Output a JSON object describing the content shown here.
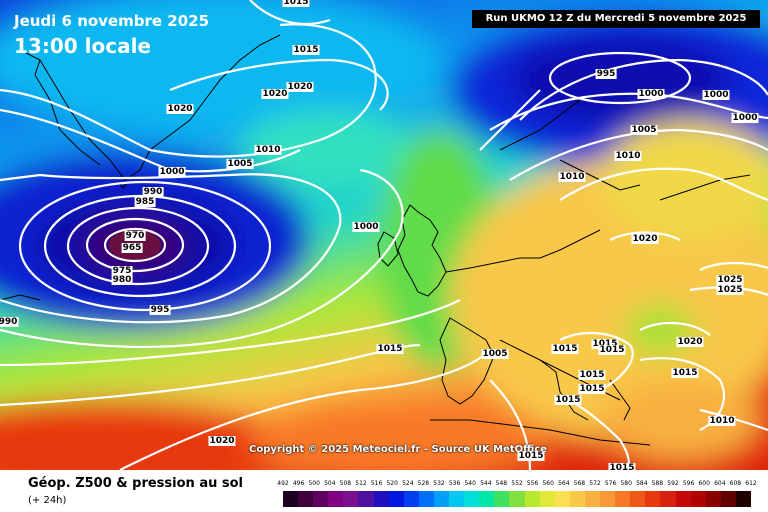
{
  "header": {
    "date": "Jeudi 6 novembre 2025",
    "time": "13:00 locale",
    "run": "Run UKMO 12 Z du Mercredi 5 novembre 2025"
  },
  "copyright": "Copyright © 2025 Meteociel.fr - Source UK MetOffice",
  "footer": {
    "title": "Géop. Z500 & pression au sol",
    "subtitle": "(+ 24h)"
  },
  "colors": {
    "low_center": "#6a1040",
    "deep_blue": "#1820c0",
    "ocean_green": "#58d858",
    "yellow": "#f6d24a",
    "red": "#e02810",
    "isobar": "#ffffff",
    "coast": "#000000"
  },
  "legend": {
    "labels": [
      "492",
      "496",
      "500",
      "504",
      "508",
      "512",
      "516",
      "520",
      "524",
      "528",
      "532",
      "536",
      "540",
      "544",
      "548",
      "552",
      "556",
      "560",
      "564",
      "568",
      "572",
      "576",
      "580",
      "584",
      "588",
      "592",
      "596",
      "600",
      "604",
      "608",
      "612"
    ],
    "colors": [
      "#200020",
      "#400040",
      "#600060",
      "#800080",
      "#7a1090",
      "#5010a0",
      "#2010c0",
      "#0018e0",
      "#0040f0",
      "#0070f8",
      "#00a0f8",
      "#00c8f0",
      "#00e0d8",
      "#00e8a8",
      "#40e060",
      "#80e040",
      "#b8e830",
      "#e0e838",
      "#f8e050",
      "#f8c848",
      "#f8b040",
      "#f89838",
      "#f87828",
      "#f05818",
      "#e83810",
      "#d82010",
      "#c80808",
      "#b00000",
      "#880000",
      "#600000",
      "#200000"
    ]
  },
  "isobar_labels": [
    {
      "text": "1015"
    },
    {
      "text": "1015"
    },
    {
      "text": "1020"
    },
    {
      "text": "1020"
    },
    {
      "text": "1020"
    },
    {
      "text": "1010"
    },
    {
      "text": "1005"
    },
    {
      "text": "1000"
    },
    {
      "text": "990"
    },
    {
      "text": "985"
    },
    {
      "text": "970"
    },
    {
      "text": "965"
    },
    {
      "text": "975"
    },
    {
      "text": "980"
    },
    {
      "text": "995"
    },
    {
      "text": "1000"
    },
    {
      "text": "990"
    },
    {
      "text": "995"
    },
    {
      "text": "1000"
    },
    {
      "text": "1000"
    },
    {
      "text": "1000"
    },
    {
      "text": "1005"
    },
    {
      "text": "1010"
    },
    {
      "text": "1010"
    },
    {
      "text": "1020"
    },
    {
      "text": "1025"
    },
    {
      "text": "1025"
    },
    {
      "text": "1020"
    },
    {
      "text": "1015"
    },
    {
      "text": "1015"
    },
    {
      "text": "1015"
    },
    {
      "text": "1015"
    },
    {
      "text": "1015"
    },
    {
      "text": "1015"
    },
    {
      "text": "1005"
    },
    {
      "text": "1015"
    },
    {
      "text": "1010"
    },
    {
      "text": "1015"
    },
    {
      "text": "1020"
    },
    {
      "text": "1015"
    },
    {
      "text": "1015"
    }
  ]
}
